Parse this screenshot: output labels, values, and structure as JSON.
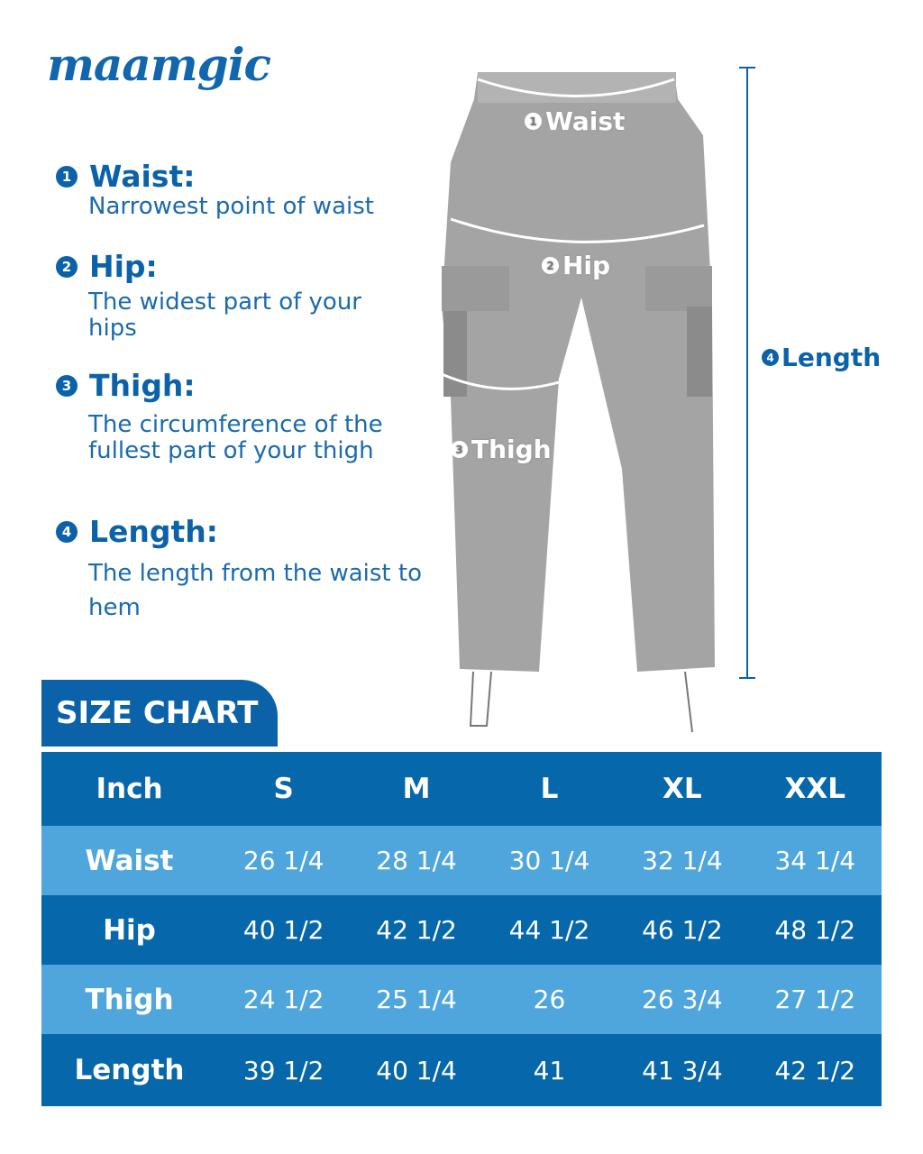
{
  "brand": "maamgic",
  "definitions": [
    {
      "num": "1",
      "title": "Waist:",
      "desc": "Narrowest point of waist"
    },
    {
      "num": "2",
      "title": "Hip:",
      "desc": "The widest part of your hips"
    },
    {
      "num": "3",
      "title": "Thigh:",
      "desc": "The circumference of the fullest part of your thigh"
    },
    {
      "num": "4",
      "title": "Length:",
      "desc": "The length from the waist to hem"
    }
  ],
  "image_labels": {
    "waist": "Waist",
    "hip": "Hip",
    "thigh": "Thigh",
    "length": "Length"
  },
  "size_chart": {
    "title": "SIZE CHART",
    "headers": [
      "Inch",
      "S",
      "M",
      "L",
      "XL",
      "XXL"
    ],
    "rows": [
      {
        "label": "Waist",
        "values": [
          "26 1/4",
          "28 1/4",
          "30 1/4",
          "32 1/4",
          "34 1/4"
        ]
      },
      {
        "label": "Hip",
        "values": [
          "40 1/2",
          "42 1/2",
          "44 1/2",
          "46 1/2",
          "48 1/2"
        ]
      },
      {
        "label": "Thigh",
        "values": [
          "24 1/2",
          "25 1/4",
          "26",
          "26 3/4",
          "27 1/2"
        ]
      },
      {
        "label": "Length",
        "values": [
          "39 1/2",
          "40 1/4",
          "41",
          "41 3/4",
          "42 1/2"
        ]
      }
    ]
  },
  "colors": {
    "brand_blue": "#0b62a8",
    "table_dark": "#0667aa",
    "table_light": "#4fa6dd",
    "pants_gray": "#a4a4a4"
  }
}
